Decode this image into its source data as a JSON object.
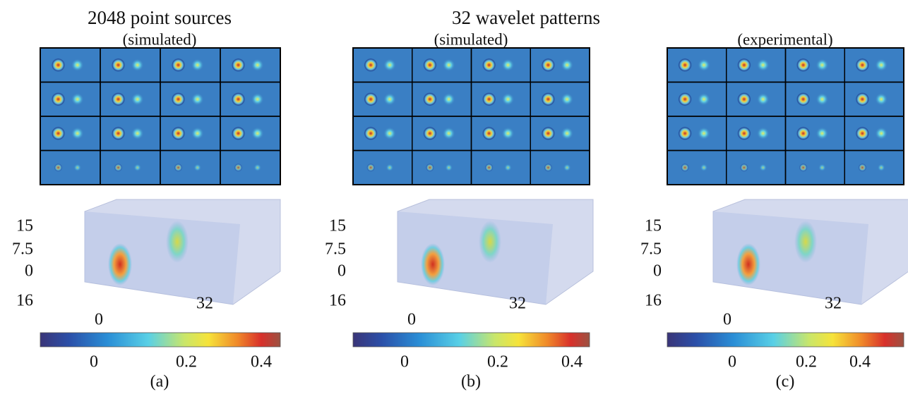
{
  "titles": {
    "left": "2048 point sources",
    "right": "32 wavelet patterns"
  },
  "panels": [
    {
      "subtitle": "(simulated)",
      "label": "(a)",
      "z_ticks": [
        "15",
        "7.5",
        "0"
      ],
      "y_tick": "16",
      "x_ticks": [
        "0",
        "32"
      ],
      "colorbar_ticks": [
        "0",
        "0.2",
        "0.4"
      ]
    },
    {
      "subtitle": "(simulated)",
      "label": "(b)",
      "z_ticks": [
        "15",
        "7.5",
        "0"
      ],
      "y_tick": "16",
      "x_ticks": [
        "0",
        "32"
      ],
      "colorbar_ticks": [
        "0",
        "0.2",
        "0.4"
      ]
    },
    {
      "subtitle": "(experimental)",
      "label": "(c)",
      "z_ticks": [
        "15",
        "7.5",
        "0"
      ],
      "y_tick": "16",
      "x_ticks": [
        "0",
        "32"
      ],
      "colorbar_ticks": [
        "0",
        "0.2",
        "0.4"
      ]
    }
  ]
}
